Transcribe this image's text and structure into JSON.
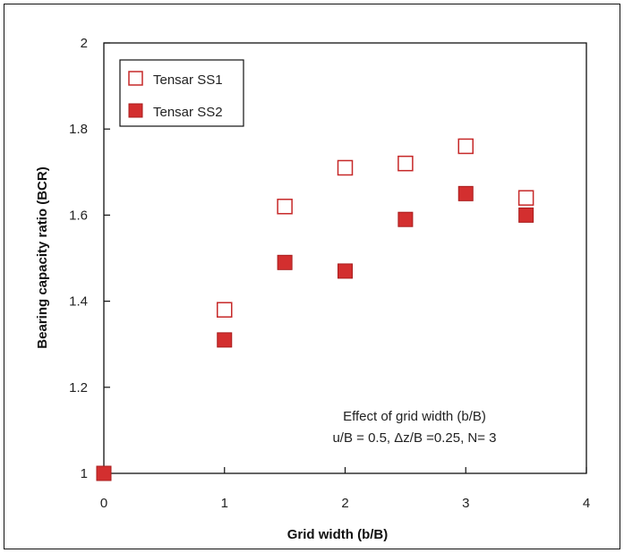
{
  "chart_data": {
    "type": "scatter",
    "xlabel": "Grid width (b/B)",
    "ylabel": "Bearing capacity ratio (BCR)",
    "xlim": [
      0,
      4
    ],
    "ylim": [
      1,
      2
    ],
    "x_ticks": [
      0,
      1,
      2,
      3,
      4
    ],
    "y_ticks": [
      1,
      1.2,
      1.4,
      1.6,
      1.8,
      2
    ],
    "x_tick_labels": [
      "0",
      "1",
      "2",
      "3",
      "4"
    ],
    "y_tick_labels": [
      "1",
      "1.2",
      "1.4",
      "1.6",
      "1.8",
      "2"
    ],
    "grid": false,
    "legend_position": "top-left",
    "annotation": {
      "line1": "Effect of grid width (b/B)",
      "line2": "u/B = 0.5,  Δz/B =0.25, N= 3"
    },
    "series": [
      {
        "name": "Tensar SS1",
        "marker": "open-square",
        "color": "#c62828",
        "points": [
          {
            "x": 1.0,
            "y": 1.38
          },
          {
            "x": 1.5,
            "y": 1.62
          },
          {
            "x": 2.0,
            "y": 1.71
          },
          {
            "x": 2.5,
            "y": 1.72
          },
          {
            "x": 3.0,
            "y": 1.76
          },
          {
            "x": 3.5,
            "y": 1.64
          }
        ]
      },
      {
        "name": "Tensar SS2",
        "marker": "filled-square",
        "color": "#d32f2f",
        "points": [
          {
            "x": 0.0,
            "y": 1.0
          },
          {
            "x": 1.0,
            "y": 1.31
          },
          {
            "x": 1.5,
            "y": 1.49
          },
          {
            "x": 2.0,
            "y": 1.47
          },
          {
            "x": 2.5,
            "y": 1.59
          },
          {
            "x": 3.0,
            "y": 1.65
          },
          {
            "x": 3.5,
            "y": 1.6
          }
        ]
      }
    ]
  }
}
